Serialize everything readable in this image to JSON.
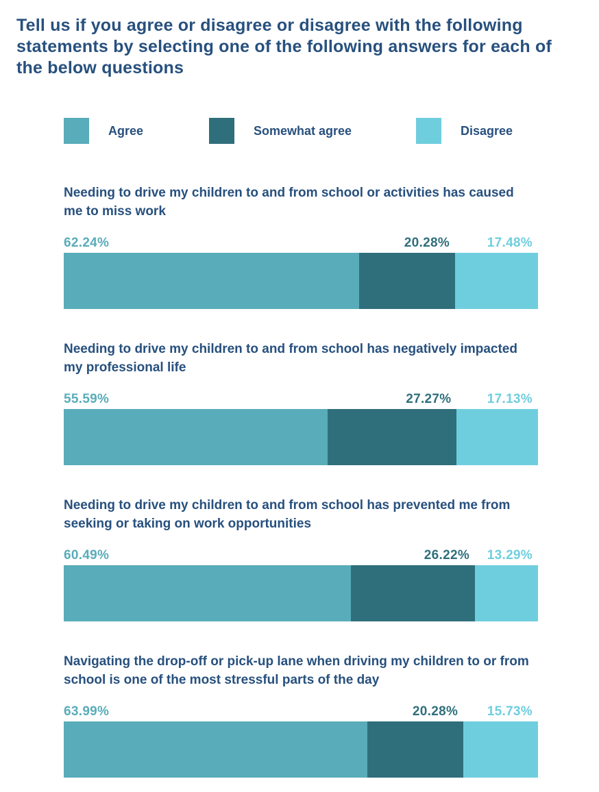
{
  "title": "Tell us if you agree or disagree or disagree with the following statements by selecting one of the following answers for each of the below questions",
  "colors": {
    "agree": "#59acb9",
    "somewhat_agree": "#2f6f7b",
    "disagree": "#6fcede",
    "heading": "#27507e"
  },
  "legend": {
    "items": [
      {
        "label": "Agree"
      },
      {
        "label": "Somewhat agree"
      },
      {
        "label": "Disagree"
      }
    ]
  },
  "questions": [
    {
      "label": "Needing to drive my children to and from school or activities has caused me to miss work",
      "values": [
        62.24,
        20.28,
        17.48
      ],
      "display": [
        "62.24%",
        "20.28%",
        "17.48%"
      ]
    },
    {
      "label": "Needing to drive my children to and from school has negatively impacted my professional life",
      "values": [
        55.59,
        27.27,
        17.13
      ],
      "display": [
        "55.59%",
        "27.27%",
        "17.13%"
      ]
    },
    {
      "label": "Needing to drive my children to and from school has prevented me from seeking or taking on work opportunities",
      "values": [
        60.49,
        26.22,
        13.29
      ],
      "display": [
        "60.49%",
        "26.22%",
        "13.29%"
      ]
    },
    {
      "label": "Navigating the drop-off or pick-up lane when driving my children to or from school is one of the most stressful parts of the day",
      "values": [
        63.99,
        20.28,
        15.73
      ],
      "display": [
        "63.99%",
        "20.28%",
        "15.73%"
      ]
    }
  ],
  "chart_data": {
    "type": "bar",
    "orientation": "horizontal_stacked",
    "title": "Tell us if you agree or disagree or disagree with the following statements by selecting one of the following answers for each of the below questions",
    "categories": [
      "Needing to drive my children to and from school or activities has caused me to miss work",
      "Needing to drive my children to and from school has negatively impacted my professional life",
      "Needing to drive my children to and from school has prevented me from seeking or taking on work opportunities",
      "Navigating the drop-off or pick-up lane when driving my children to or from school is one of the most stressful parts of the day"
    ],
    "series": [
      {
        "name": "Agree",
        "color": "#59acb9",
        "values": [
          62.24,
          55.59,
          60.49,
          63.99
        ]
      },
      {
        "name": "Somewhat agree",
        "color": "#2f6f7b",
        "values": [
          20.28,
          27.27,
          26.22,
          20.28
        ]
      },
      {
        "name": "Disagree",
        "color": "#6fcede",
        "values": [
          17.48,
          17.13,
          13.29,
          15.73
        ]
      }
    ],
    "xlim": [
      0,
      100
    ],
    "grid": false,
    "legend_position": "top",
    "value_labels": "percent shown above each segment"
  }
}
